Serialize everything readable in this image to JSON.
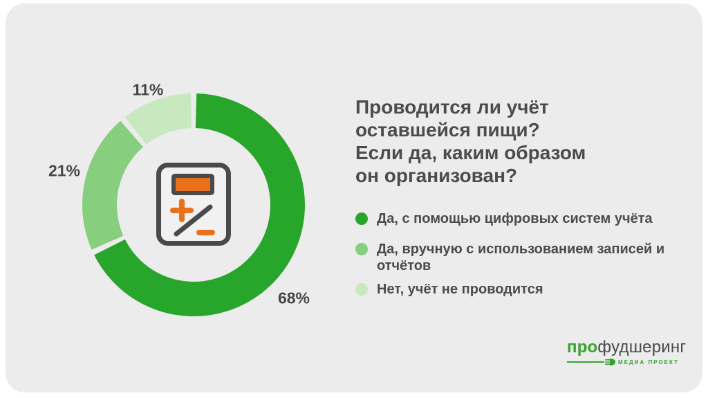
{
  "card": {
    "background": "#ECECEC"
  },
  "question": {
    "title": "Проводится ли учёт\nоставшейся пищи?\nЕсли да, каким образом\nон организован?"
  },
  "chart_data": {
    "type": "pie",
    "subtype": "donut",
    "title": "Проводится ли учёт оставшейся пищи? Если да, каким образом он организован?",
    "units": "%",
    "start_angle_deg": 0,
    "gap_deg": 3,
    "center_icon": "calculator-plus-minus",
    "segments": [
      {
        "label": "Да, с помощью цифровых систем учёта",
        "value": 68,
        "pct_label": "68%",
        "color": "#28A52B"
      },
      {
        "label": "Да, вручную с использованием записей и отчётов",
        "value": 21,
        "pct_label": "21%",
        "color": "#87CE7E"
      },
      {
        "label": "Нет, учёт не проводится",
        "value": 11,
        "pct_label": "11%",
        "color": "#C8E8C0"
      }
    ]
  },
  "icon_colors": {
    "calculator_stroke": "#4A4A4A",
    "calculator_fill": "#F1F1F1",
    "calculator_accent": "#E8721C"
  },
  "logo": {
    "brand_prefix": "про",
    "brand_suffix": "фудшеринг",
    "tagline": "МЕДИА ПРОЕКТ",
    "green": "#35A32C"
  }
}
